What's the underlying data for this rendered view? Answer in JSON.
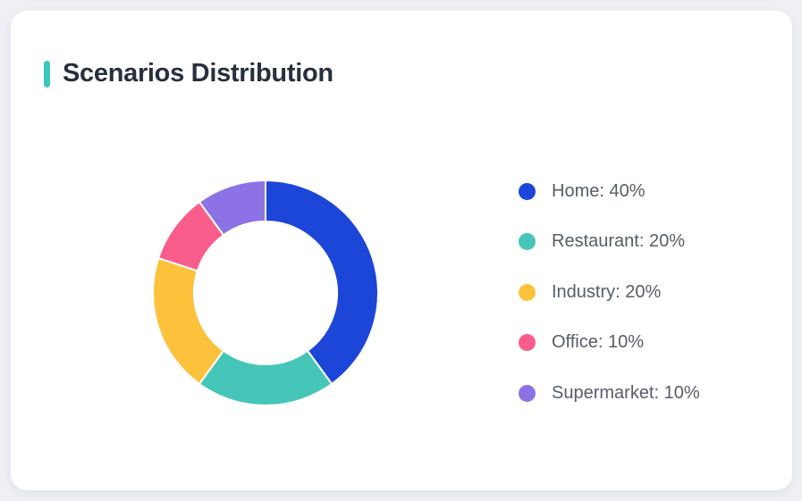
{
  "page": {
    "background_color": "#eef0f4"
  },
  "card": {
    "title": "Scenarios Distribution",
    "accent_color": "#3ec6c0",
    "background_color": "#ffffff"
  },
  "chart_data": {
    "type": "pie",
    "variant": "donut",
    "title": "Scenarios Distribution",
    "categories": [
      "Home",
      "Restaurant",
      "Industry",
      "Office",
      "Supermarket"
    ],
    "values": [
      40,
      20,
      20,
      10,
      10
    ],
    "unit": "%",
    "colors": [
      "#1c46d8",
      "#45c6b8",
      "#fcc23c",
      "#f95d8b",
      "#8c72e4"
    ],
    "start_angle_deg": 0,
    "direction": "clockwise",
    "inner_radius_ratio": 0.635,
    "segment_gap_color": "#ffffff",
    "legend": {
      "position": "right",
      "entries": [
        "Home: 40%",
        "Restaurant: 20%",
        "Industry: 20%",
        "Office: 10%",
        "Supermarket: 10%"
      ]
    }
  }
}
